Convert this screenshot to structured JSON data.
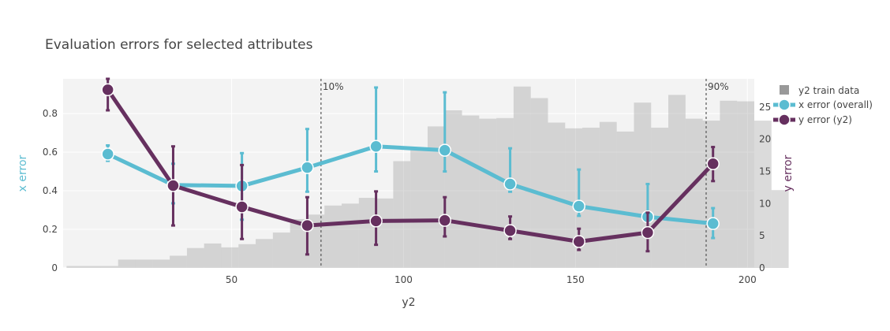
{
  "chart_data": {
    "type": "line",
    "title": "Evaluation errors for selected attributes",
    "xlabel": "y2",
    "ylabel": "x error",
    "y2label": "y error",
    "xlim": [
      1,
      202
    ],
    "ylim": [
      0,
      0.98
    ],
    "y2lim": [
      0,
      29.4
    ],
    "x_ticks": [
      50,
      100,
      150,
      200
    ],
    "y_ticks": [
      0,
      0.2,
      0.4,
      0.6,
      0.8
    ],
    "y2_ticks": [
      0,
      5,
      10,
      15,
      20,
      25
    ],
    "y_tick_labels": [
      "0",
      "0.2",
      "0.4",
      "0.6",
      "0.8"
    ],
    "y2_tick_labels": [
      "0",
      "5",
      "10",
      "15",
      "20",
      "25"
    ],
    "x_tick_labels": [
      "50",
      "100",
      "150",
      "200"
    ],
    "grid": true,
    "legend_position": "top-right",
    "histogram": {
      "name": "y2 train data",
      "color": "#999999",
      "bin_start": 2,
      "bin_width": 5,
      "counts": [
        0.3,
        0.3,
        0.3,
        1.3,
        1.3,
        1.3,
        1.9,
        3.1,
        3.8,
        3.2,
        3.7,
        4.5,
        5.5,
        7.6,
        8.3,
        9.7,
        10.0,
        10.9,
        10.8,
        16.6,
        18.4,
        22.0,
        24.5,
        23.7,
        23.2,
        23.3,
        28.2,
        26.4,
        22.6,
        21.7,
        21.8,
        22.7,
        21.2,
        25.7,
        21.8,
        26.9,
        23.2,
        22.9,
        26.0,
        25.9,
        22.9,
        12.1
      ]
    },
    "series": [
      {
        "name": "x error (overall)",
        "axis": "y",
        "color": "#5bbcd1",
        "x": [
          14,
          33,
          53,
          72,
          92,
          112,
          131,
          151,
          171,
          190
        ],
        "y": [
          0.59,
          0.43,
          0.425,
          0.52,
          0.63,
          0.61,
          0.435,
          0.32,
          0.265,
          0.23
        ],
        "err_low": [
          0.555,
          0.335,
          0.25,
          0.395,
          0.5,
          0.5,
          0.395,
          0.27,
          0.245,
          0.155
        ],
        "err_high": [
          0.635,
          0.54,
          0.595,
          0.72,
          0.935,
          0.91,
          0.62,
          0.51,
          0.435,
          0.31
        ]
      },
      {
        "name": "y error (y2)",
        "axis": "y2",
        "color": "#66305f",
        "x": [
          14,
          33,
          53,
          72,
          92,
          112,
          131,
          151,
          171,
          190
        ],
        "y": [
          27.7,
          12.8,
          9.5,
          6.6,
          7.3,
          7.4,
          5.8,
          4.1,
          5.5,
          16.2
        ],
        "err_low": [
          24.5,
          6.6,
          4.5,
          2.1,
          3.6,
          4.9,
          4.5,
          2.8,
          2.6,
          13.5
        ],
        "err_high": [
          29.4,
          18.9,
          16.0,
          11.0,
          11.9,
          11.0,
          8.0,
          6.1,
          8.6,
          18.8
        ]
      }
    ],
    "annotations": [
      {
        "x": 76,
        "text": "10%"
      },
      {
        "x": 188,
        "text": "90%"
      }
    ]
  }
}
